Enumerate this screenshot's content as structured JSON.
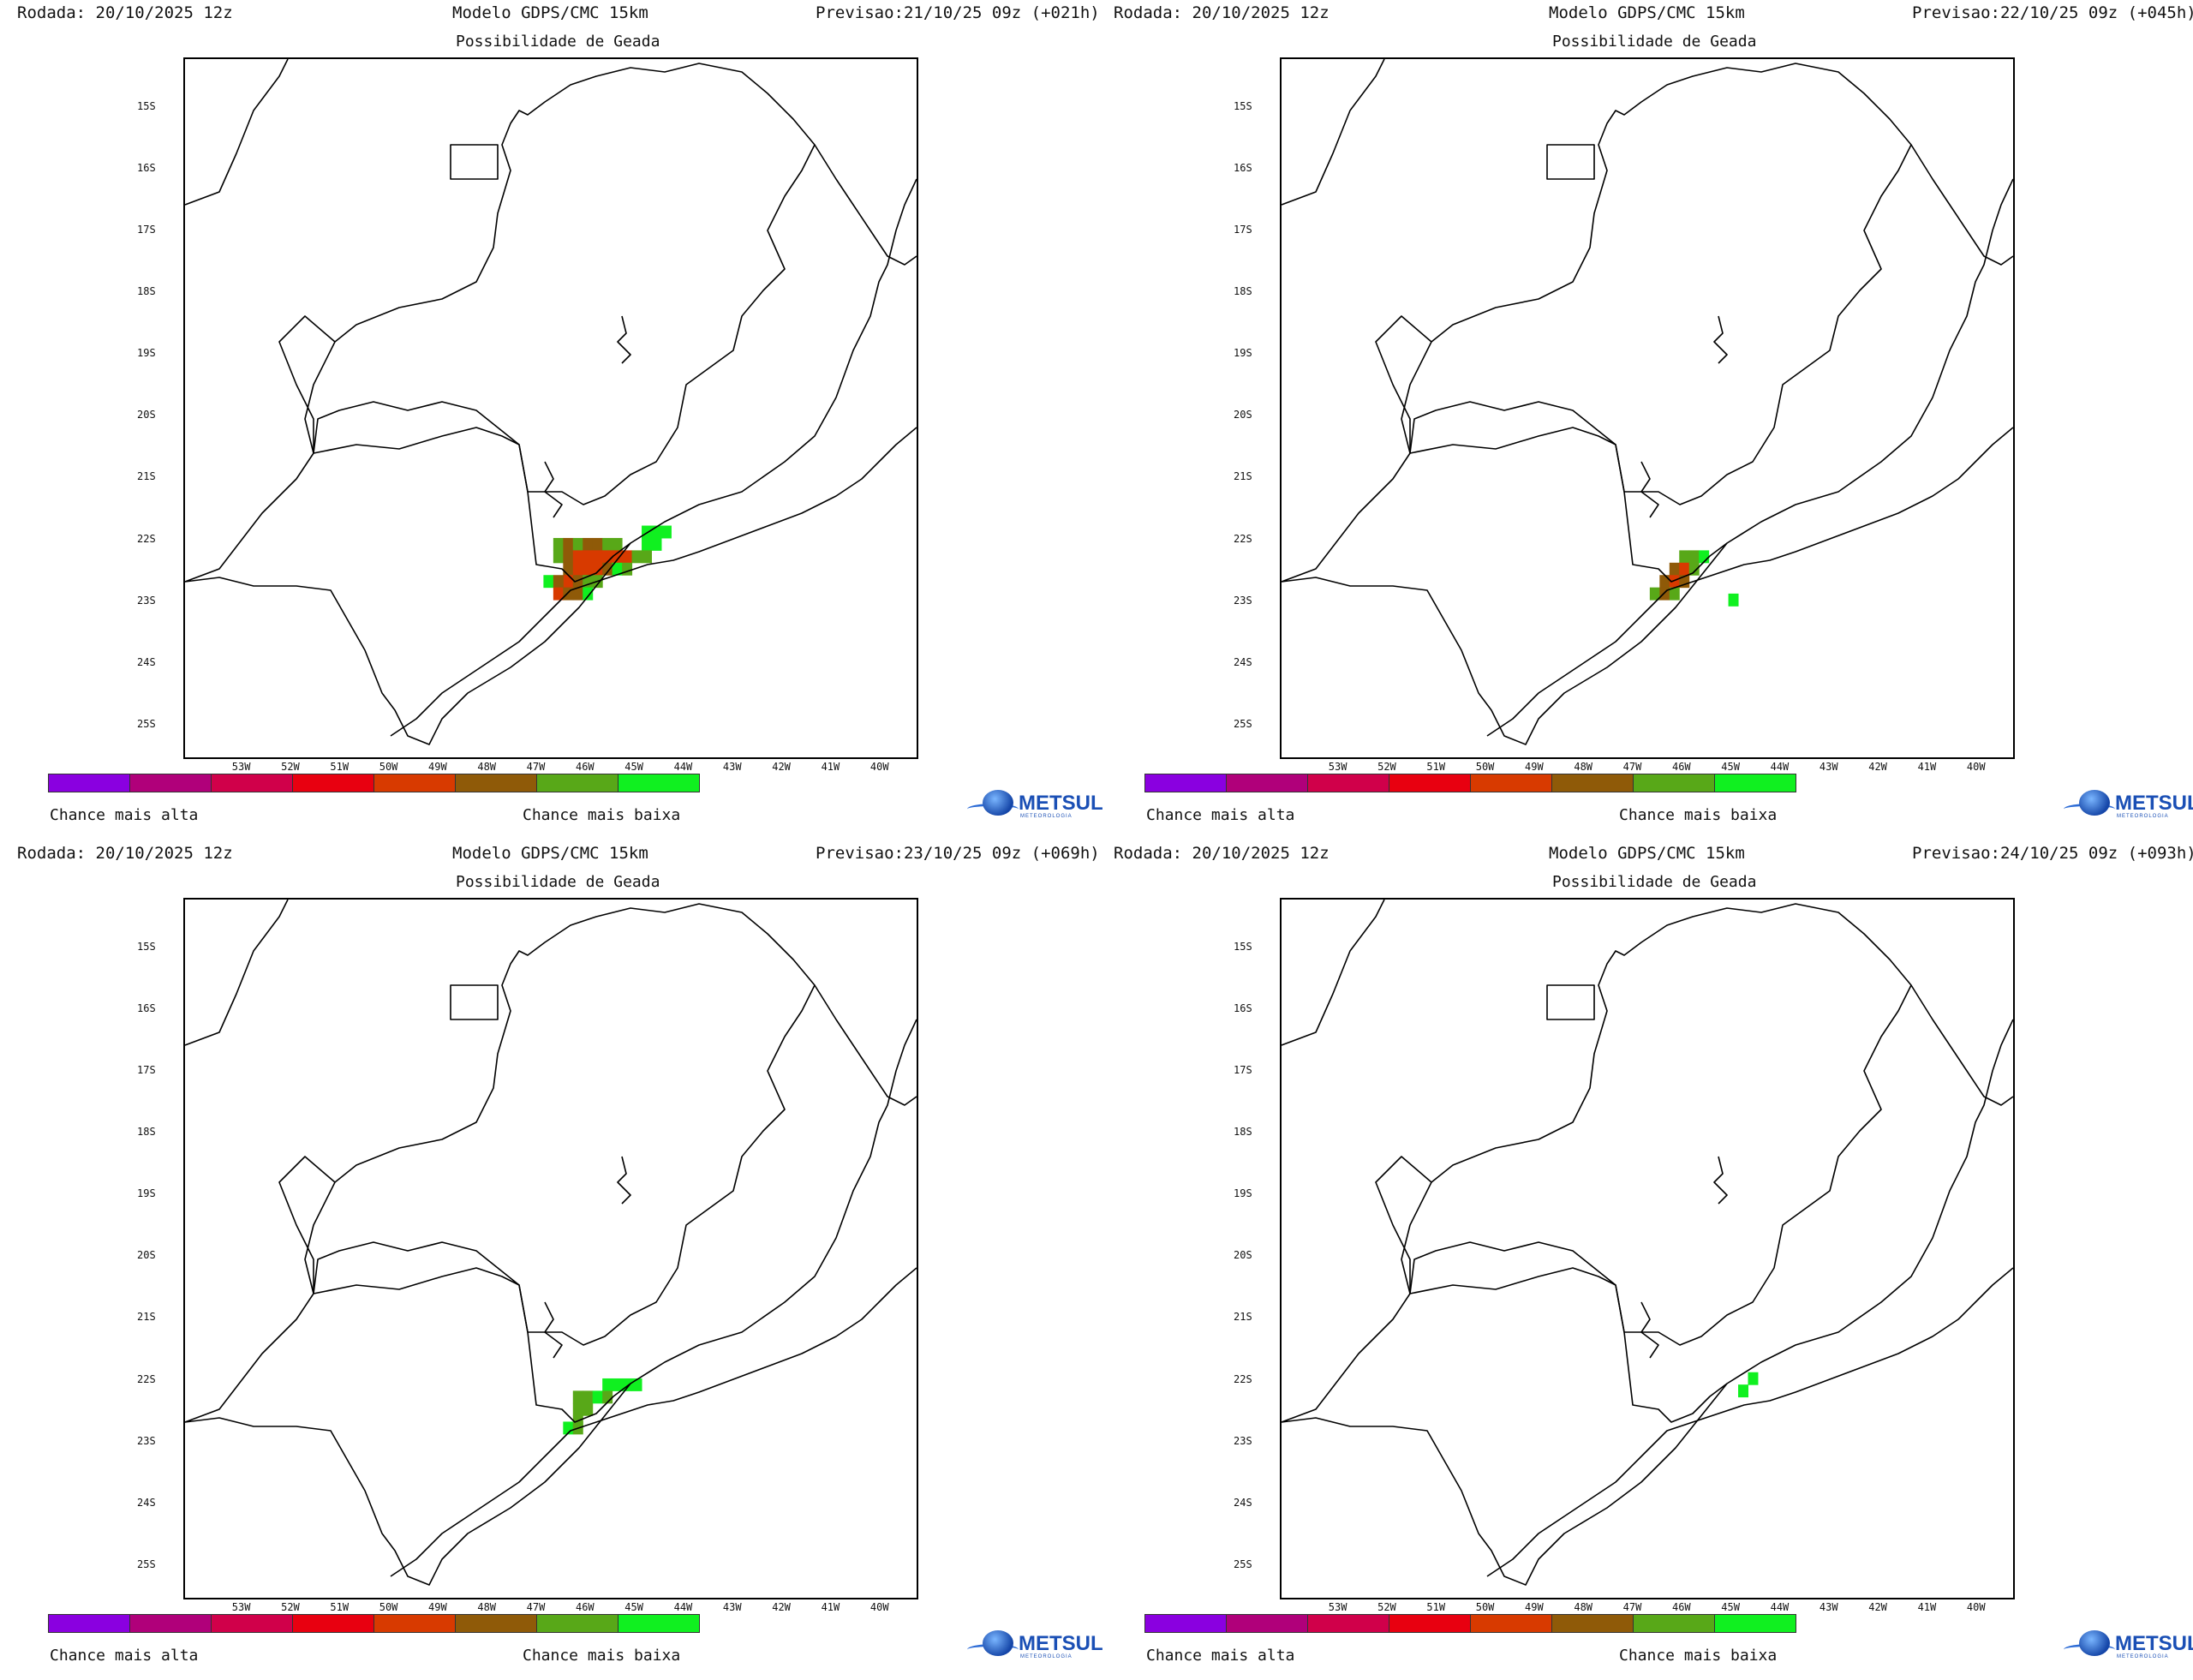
{
  "colorbar": {
    "colors": [
      "#8a00e0",
      "#b0007a",
      "#d0004a",
      "#e80010",
      "#d83a00",
      "#8f5a08",
      "#58a818",
      "#10f020"
    ],
    "label_high": "Chance mais alta",
    "label_low": "Chance mais baixa"
  },
  "axes": {
    "lat_labels": [
      "15S",
      "16S",
      "17S",
      "18S",
      "19S",
      "20S",
      "21S",
      "22S",
      "23S",
      "24S",
      "25S"
    ],
    "lon_labels": [
      "53W",
      "52W",
      "51W",
      "50W",
      "49W",
      "48W",
      "47W",
      "46W",
      "45W",
      "44W",
      "43W",
      "42W",
      "41W",
      "40W"
    ]
  },
  "logo": {
    "brand": "METSUL",
    "tagline": "METEOROLOGIA"
  },
  "panels": [
    {
      "run": "Rodada: 20/10/2025 12z",
      "model": "Modelo GDPS/CMC 15km",
      "forecast": "Previsao:21/10/25 09z (+021h)",
      "subtitle": "Possibilidade de Geada"
    },
    {
      "run": "Rodada: 20/10/2025 12z",
      "model": "Modelo GDPS/CMC 15km",
      "forecast": "Previsao:22/10/25 09z (+045h)",
      "subtitle": "Possibilidade de Geada"
    },
    {
      "run": "Rodada: 20/10/2025 12z",
      "model": "Modelo GDPS/CMC 15km",
      "forecast": "Previsao:23/10/25 09z (+069h)",
      "subtitle": "Possibilidade de Geada"
    },
    {
      "run": "Rodada: 20/10/2025 12z",
      "model": "Modelo GDPS/CMC 15km",
      "forecast": "Previsao:24/10/25 09z (+093h)",
      "subtitle": "Possibilidade de Geada"
    }
  ],
  "frost_cells": [
    [
      {
        "lon": -46.6,
        "lat": -22.05,
        "level": 6
      },
      {
        "lon": -46.4,
        "lat": -22.05,
        "level": 5
      },
      {
        "lon": -46.2,
        "lat": -22.05,
        "level": 6
      },
      {
        "lon": -46.0,
        "lat": -22.05,
        "level": 5
      },
      {
        "lon": -45.8,
        "lat": -22.05,
        "level": 5
      },
      {
        "lon": -45.6,
        "lat": -22.05,
        "level": 6
      },
      {
        "lon": -45.4,
        "lat": -22.05,
        "level": 6
      },
      {
        "lon": -44.8,
        "lat": -21.85,
        "level": 7
      },
      {
        "lon": -44.6,
        "lat": -21.85,
        "level": 7
      },
      {
        "lon": -44.4,
        "lat": -21.85,
        "level": 7
      },
      {
        "lon": -44.6,
        "lat": -22.05,
        "level": 7
      },
      {
        "lon": -44.8,
        "lat": -22.05,
        "level": 7
      },
      {
        "lon": -46.6,
        "lat": -22.25,
        "level": 6
      },
      {
        "lon": -46.4,
        "lat": -22.25,
        "level": 5
      },
      {
        "lon": -46.2,
        "lat": -22.25,
        "level": 4
      },
      {
        "lon": -46.0,
        "lat": -22.25,
        "level": 4
      },
      {
        "lon": -45.8,
        "lat": -22.25,
        "level": 4
      },
      {
        "lon": -45.6,
        "lat": -22.25,
        "level": 4
      },
      {
        "lon": -45.4,
        "lat": -22.25,
        "level": 4
      },
      {
        "lon": -45.2,
        "lat": -22.25,
        "level": 4
      },
      {
        "lon": -45.0,
        "lat": -22.25,
        "level": 6
      },
      {
        "lon": -44.8,
        "lat": -22.25,
        "level": 6
      },
      {
        "lon": -46.4,
        "lat": -22.45,
        "level": 5
      },
      {
        "lon": -46.2,
        "lat": -22.45,
        "level": 4
      },
      {
        "lon": -46.0,
        "lat": -22.45,
        "level": 4
      },
      {
        "lon": -45.8,
        "lat": -22.45,
        "level": 4
      },
      {
        "lon": -45.6,
        "lat": -22.45,
        "level": 5
      },
      {
        "lon": -45.4,
        "lat": -22.45,
        "level": 7
      },
      {
        "lon": -45.2,
        "lat": -22.45,
        "level": 6
      },
      {
        "lon": -46.4,
        "lat": -22.65,
        "level": 4
      },
      {
        "lon": -46.2,
        "lat": -22.65,
        "level": 5
      },
      {
        "lon": -46.0,
        "lat": -22.65,
        "level": 6
      },
      {
        "lon": -45.8,
        "lat": -22.65,
        "level": 6
      },
      {
        "lon": -46.8,
        "lat": -22.65,
        "level": 7
      },
      {
        "lon": -46.6,
        "lat": -22.65,
        "level": 5
      },
      {
        "lon": -46.6,
        "lat": -22.85,
        "level": 4
      },
      {
        "lon": -46.4,
        "lat": -22.85,
        "level": 5
      },
      {
        "lon": -46.2,
        "lat": -22.85,
        "level": 5
      },
      {
        "lon": -46.0,
        "lat": -22.85,
        "level": 7
      }
    ],
    [
      {
        "lon": -46.0,
        "lat": -22.25,
        "level": 6
      },
      {
        "lon": -45.8,
        "lat": -22.25,
        "level": 6
      },
      {
        "lon": -45.6,
        "lat": -22.25,
        "level": 7
      },
      {
        "lon": -46.2,
        "lat": -22.45,
        "level": 5
      },
      {
        "lon": -46.0,
        "lat": -22.45,
        "level": 4
      },
      {
        "lon": -45.8,
        "lat": -22.45,
        "level": 6
      },
      {
        "lon": -46.4,
        "lat": -22.65,
        "level": 5
      },
      {
        "lon": -46.2,
        "lat": -22.65,
        "level": 4
      },
      {
        "lon": -46.0,
        "lat": -22.65,
        "level": 5
      },
      {
        "lon": -46.6,
        "lat": -22.85,
        "level": 6
      },
      {
        "lon": -46.4,
        "lat": -22.85,
        "level": 5
      },
      {
        "lon": -46.2,
        "lat": -22.85,
        "level": 6
      },
      {
        "lon": -45.0,
        "lat": -22.95,
        "level": 7
      }
    ],
    [
      {
        "lon": -45.6,
        "lat": -22.05,
        "level": 7
      },
      {
        "lon": -45.4,
        "lat": -22.05,
        "level": 7
      },
      {
        "lon": -45.2,
        "lat": -22.05,
        "level": 7
      },
      {
        "lon": -45.0,
        "lat": -22.05,
        "level": 7
      },
      {
        "lon": -46.2,
        "lat": -22.25,
        "level": 6
      },
      {
        "lon": -46.0,
        "lat": -22.25,
        "level": 6
      },
      {
        "lon": -45.8,
        "lat": -22.25,
        "level": 7
      },
      {
        "lon": -45.6,
        "lat": -22.25,
        "level": 6
      },
      {
        "lon": -46.2,
        "lat": -22.45,
        "level": 6
      },
      {
        "lon": -46.0,
        "lat": -22.45,
        "level": 6
      },
      {
        "lon": -46.2,
        "lat": -22.65,
        "level": 6
      },
      {
        "lon": -46.4,
        "lat": -22.75,
        "level": 7
      },
      {
        "lon": -46.2,
        "lat": -22.75,
        "level": 6
      }
    ],
    [
      {
        "lon": -44.6,
        "lat": -21.95,
        "level": 7
      },
      {
        "lon": -44.8,
        "lat": -22.15,
        "level": 7
      }
    ]
  ]
}
